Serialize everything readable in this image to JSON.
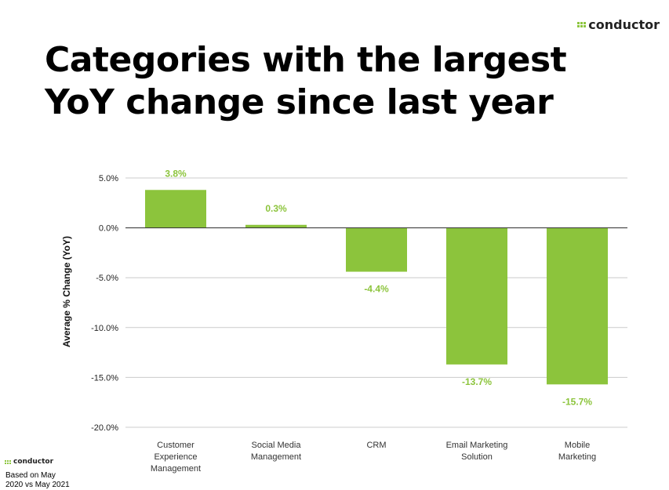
{
  "title": "Categories with the largest YoY change since last year",
  "logo": "conductor",
  "footnote": [
    "Based on May",
    "2020 vs May 2021"
  ],
  "colors": {
    "bar": "#8cc43c",
    "label": "#8cc43c"
  },
  "chart_data": {
    "type": "bar",
    "categories": [
      [
        "Customer",
        "Experience",
        "Management"
      ],
      [
        "Social Media",
        "Management"
      ],
      [
        "CRM"
      ],
      [
        "Email Marketing",
        "Solution"
      ],
      [
        "Mobile",
        "Marketing"
      ]
    ],
    "values": [
      3.8,
      0.3,
      -4.4,
      -13.7,
      -15.7
    ],
    "data_labels": [
      "3.8%",
      "0.3%",
      "-4.4%",
      "-13.7%",
      "-15.7%"
    ],
    "ylabel": "Average % Change (YoY)",
    "ylim": [
      -20,
      5
    ],
    "yticks": [
      5,
      0,
      -5,
      -10,
      -15,
      -20
    ],
    "ytick_labels": [
      "5.0%",
      "0.0%",
      "-5.0%",
      "-10.0%",
      "-15.0%",
      "-20.0%"
    ],
    "grid": true
  }
}
